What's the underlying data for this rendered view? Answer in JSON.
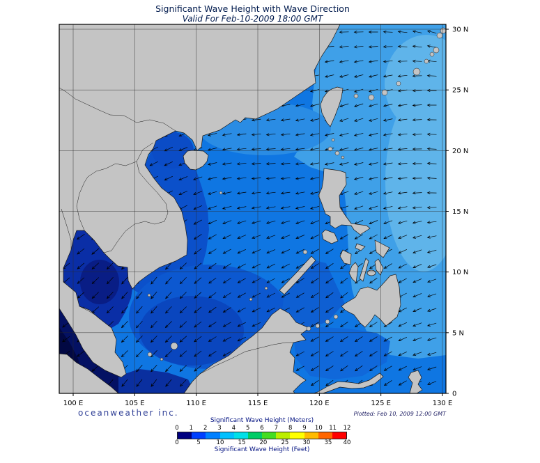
{
  "title": "Significant Wave Height with Wave Direction",
  "subtitle": "Valid For Feb-10-2009 18:00 GMT",
  "branding": "oceanweather inc.",
  "plotted_note": "Plotted: Feb 10, 2009 12:00 GMT",
  "axes": {
    "x_ticks": [
      {
        "label": "100 E",
        "lon": 100
      },
      {
        "label": "105 E",
        "lon": 105
      },
      {
        "label": "110 E",
        "lon": 110
      },
      {
        "label": "115 E",
        "lon": 115
      },
      {
        "label": "120 E",
        "lon": 120
      },
      {
        "label": "125 E",
        "lon": 125
      },
      {
        "label": "130 E",
        "lon": 130
      }
    ],
    "y_ticks": [
      {
        "label": "30 N",
        "lat": 30
      },
      {
        "label": "25 N",
        "lat": 25
      },
      {
        "label": "20 N",
        "lat": 20
      },
      {
        "label": "15 N",
        "lat": 15
      },
      {
        "label": "10 N",
        "lat": 10
      },
      {
        "label": "5 N",
        "lat": 5
      },
      {
        "label": "0",
        "lat": 0
      }
    ]
  },
  "legend": {
    "meters_title": "Significant Wave Height (Meters)",
    "feet_title": "Significant Wave Height (Feet)",
    "meters_ticks": [
      0,
      1,
      2,
      3,
      4,
      5,
      6,
      7,
      8,
      9,
      10,
      11,
      12
    ],
    "feet_ticks": [
      0,
      5,
      10,
      15,
      20,
      25,
      30,
      35,
      40
    ],
    "colors": [
      "#000080",
      "#0040ff",
      "#0080ff",
      "#00c0ff",
      "#00e0e8",
      "#00cc66",
      "#44dd22",
      "#bbee00",
      "#ffff00",
      "#ffbb00",
      "#ff6600",
      "#ff0000"
    ]
  },
  "chart_data": {
    "type": "map",
    "region": "South China Sea and Western Pacific (100E-130E, 0N-30N)",
    "field": "Significant wave height (shaded, meters/feet per legend) with wave direction arrows",
    "valid_time": "Feb-10-2009 18:00 GMT",
    "estimated_values": [
      {
        "area": "Pacific east of Philippines / Luzon Strait",
        "hs_m": 3,
        "direction": "toward W"
      },
      {
        "area": "Central South China Sea",
        "hs_m": 2.5,
        "direction": "toward SW"
      },
      {
        "area": "South China Sea off Vietnam coast",
        "hs_m": 2,
        "direction": "toward SW"
      },
      {
        "area": "Gulf of Thailand",
        "hs_m": 1,
        "direction": "toward SW"
      },
      {
        "area": "Malacca Strait / far southwest",
        "hs_m": 0.5,
        "direction": "toward S"
      },
      {
        "area": "Sulu and Celebes Seas",
        "hs_m": 2,
        "direction": "toward W"
      }
    ]
  },
  "wave_arrows": {
    "color": "#000000",
    "spacing": 21,
    "length": 13
  }
}
